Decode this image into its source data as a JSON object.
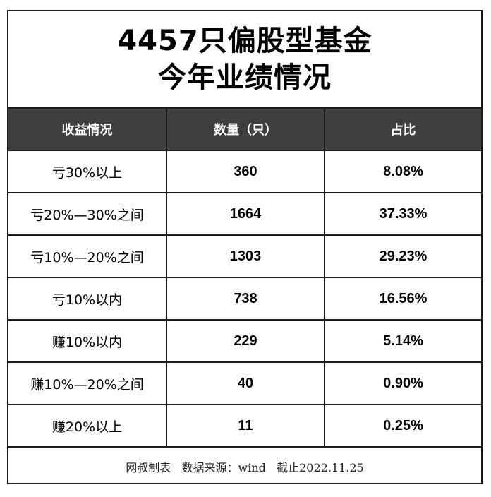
{
  "title": {
    "line1": "4457只偏股型基金",
    "line2": "今年业绩情况"
  },
  "table": {
    "headers": [
      "收益情况",
      "数量（只）",
      "占比"
    ],
    "rows": [
      {
        "category": "亏30%以上",
        "count": "360",
        "share": "8.08%"
      },
      {
        "category": "亏20%—30%之间",
        "count": "1664",
        "share": "37.33%"
      },
      {
        "category": "亏10%—20%之间",
        "count": "1303",
        "share": "29.23%"
      },
      {
        "category": "亏10%以内",
        "count": "738",
        "share": "16.56%"
      },
      {
        "category": "赚10%以内",
        "count": "229",
        "share": "5.14%"
      },
      {
        "category": "赚10%—20%之间",
        "count": "40",
        "share": "0.90%"
      },
      {
        "category": "赚20%以上",
        "count": "11",
        "share": "0.25%"
      }
    ]
  },
  "footer": {
    "text": "网叔制表   数据来源：wind   截止2022.11.25"
  },
  "colors": {
    "header_bg": "#3f3f3f",
    "header_text": "#ffffff",
    "border": "#1a1a1a",
    "background": "#ffffff"
  }
}
